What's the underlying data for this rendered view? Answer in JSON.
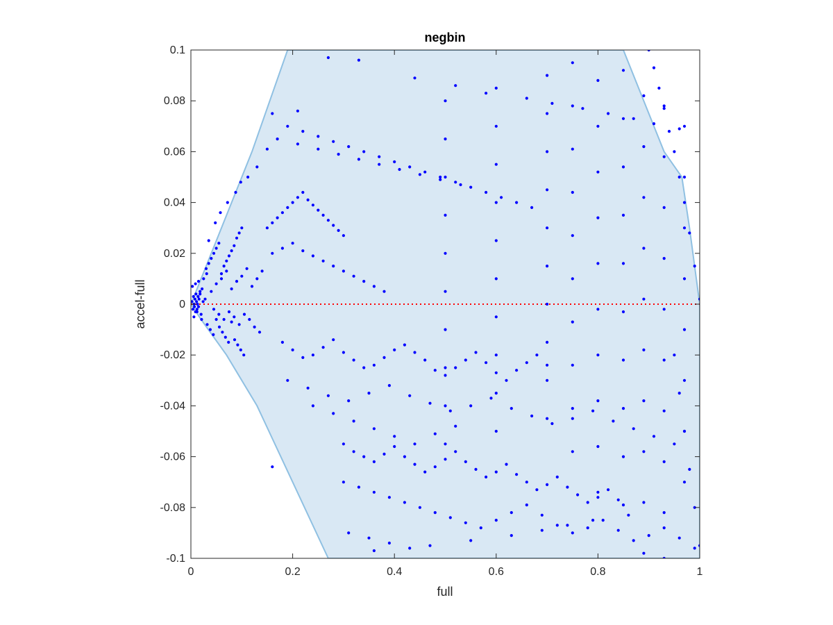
{
  "chart_data": {
    "type": "scatter",
    "title": "negbin",
    "xlabel": "full",
    "ylabel": "accel-full",
    "xlim": [
      0,
      1
    ],
    "ylim": [
      -0.1,
      0.1
    ],
    "xticks": [
      0,
      0.2,
      0.4,
      0.6,
      0.8,
      1
    ],
    "xtick_labels": [
      "0",
      "0.2",
      "0.4",
      "0.6",
      "0.8",
      "1"
    ],
    "yticks": [
      -0.1,
      -0.08,
      -0.06,
      -0.04,
      -0.02,
      0,
      0.02,
      0.04,
      0.06,
      0.08,
      0.1
    ],
    "ytick_labels": [
      "-0.1",
      "-0.08",
      "-0.06",
      "-0.04",
      "-0.02",
      "0",
      "0.02",
      "0.04",
      "0.06",
      "0.08",
      "0.1"
    ],
    "grid": false,
    "reference_line": {
      "y": 0,
      "color": "#ff0000",
      "style": "dotted"
    },
    "region": {
      "fill": "#d9e8f4",
      "stroke": "#8fc0e2",
      "boundary": [
        [
          0,
          0
        ],
        [
          0.02,
          0.01
        ],
        [
          0.06,
          0.03
        ],
        [
          0.12,
          0.06
        ],
        [
          0.19,
          0.1
        ],
        [
          0.85,
          0.1
        ],
        [
          0.88,
          0.085
        ],
        [
          0.93,
          0.06
        ],
        [
          0.965,
          0.05
        ],
        [
          0.98,
          0.03
        ],
        [
          1,
          0
        ],
        [
          1,
          -0.1
        ],
        [
          0.27,
          -0.1
        ],
        [
          0.2,
          -0.07
        ],
        [
          0.13,
          -0.04
        ],
        [
          0.07,
          -0.02
        ],
        [
          0.02,
          -0.006
        ],
        [
          0,
          0
        ]
      ]
    },
    "series": [
      {
        "color": "#0000ff",
        "x": [
          0.002,
          0.004,
          0.005,
          0.006,
          0.007,
          0.008,
          0.009,
          0.01,
          0.011,
          0.012,
          0.013,
          0.014,
          0.015,
          0.016,
          0.018,
          0.02,
          0.022,
          0.024,
          0.003,
          0.006,
          0.009,
          0.012,
          0.015,
          0.018,
          0.021,
          0.025,
          0.028,
          0.031,
          0.03,
          0.035,
          0.04,
          0.045,
          0.05,
          0.055,
          0.06,
          0.065,
          0.07,
          0.075,
          0.08,
          0.085,
          0.09,
          0.095,
          0.1,
          0.032,
          0.038,
          0.044,
          0.05,
          0.056,
          0.062,
          0.068,
          0.074,
          0.08,
          0.086,
          0.092,
          0.098,
          0.104,
          0.04,
          0.05,
          0.06,
          0.07,
          0.08,
          0.09,
          0.1,
          0.11,
          0.12,
          0.13,
          0.14,
          0.045,
          0.055,
          0.065,
          0.075,
          0.085,
          0.095,
          0.105,
          0.115,
          0.125,
          0.135,
          0.035,
          0.048,
          0.058,
          0.072,
          0.088,
          0.098,
          0.112,
          0.15,
          0.16,
          0.17,
          0.18,
          0.19,
          0.2,
          0.21,
          0.22,
          0.23,
          0.24,
          0.25,
          0.26,
          0.27,
          0.28,
          0.29,
          0.3,
          0.16,
          0.18,
          0.2,
          0.22,
          0.24,
          0.26,
          0.28,
          0.3,
          0.32,
          0.34,
          0.36,
          0.38,
          0.16,
          0.19,
          0.22,
          0.25,
          0.28,
          0.31,
          0.34,
          0.37,
          0.4,
          0.43,
          0.46,
          0.49,
          0.52,
          0.55,
          0.58,
          0.61,
          0.64,
          0.67,
          0.17,
          0.21,
          0.25,
          0.29,
          0.33,
          0.37,
          0.41,
          0.45,
          0.49,
          0.53,
          0.18,
          0.2,
          0.22,
          0.24,
          0.26,
          0.28,
          0.3,
          0.32,
          0.34,
          0.36,
          0.38,
          0.4,
          0.42,
          0.44,
          0.46,
          0.48,
          0.5,
          0.52,
          0.54,
          0.56,
          0.58,
          0.6,
          0.62,
          0.64,
          0.66,
          0.68,
          0.7,
          0.19,
          0.23,
          0.27,
          0.31,
          0.35,
          0.39,
          0.43,
          0.47,
          0.51,
          0.55,
          0.59,
          0.63,
          0.67,
          0.71,
          0.75,
          0.79,
          0.83,
          0.87,
          0.91,
          0.95,
          0.24,
          0.28,
          0.32,
          0.36,
          0.4,
          0.44,
          0.48,
          0.52,
          0.3,
          0.32,
          0.34,
          0.36,
          0.38,
          0.4,
          0.42,
          0.44,
          0.46,
          0.48,
          0.5,
          0.52,
          0.54,
          0.56,
          0.58,
          0.6,
          0.62,
          0.64,
          0.66,
          0.68,
          0.7,
          0.72,
          0.74,
          0.76,
          0.78,
          0.8,
          0.82,
          0.84,
          0.3,
          0.33,
          0.36,
          0.39,
          0.42,
          0.45,
          0.48,
          0.51,
          0.54,
          0.57,
          0.6,
          0.63,
          0.66,
          0.69,
          0.72,
          0.75,
          0.78,
          0.81,
          0.84,
          0.87,
          0.9,
          0.93,
          0.96,
          0.99,
          0.31,
          0.35,
          0.39,
          0.43,
          0.5,
          0.5,
          0.5,
          0.5,
          0.5,
          0.5,
          0.5,
          0.5,
          0.5,
          0.5,
          0.6,
          0.6,
          0.6,
          0.6,
          0.6,
          0.6,
          0.6,
          0.6,
          0.6,
          0.6,
          0.7,
          0.7,
          0.7,
          0.7,
          0.7,
          0.7,
          0.7,
          0.7,
          0.7,
          0.7,
          0.75,
          0.75,
          0.75,
          0.75,
          0.75,
          0.75,
          0.75,
          0.75,
          0.75,
          0.75,
          0.8,
          0.8,
          0.8,
          0.8,
          0.8,
          0.8,
          0.8,
          0.8,
          0.8,
          0.8,
          0.85,
          0.85,
          0.85,
          0.85,
          0.85,
          0.85,
          0.85,
          0.85,
          0.85,
          0.85,
          0.89,
          0.89,
          0.89,
          0.89,
          0.89,
          0.89,
          0.89,
          0.89,
          0.89,
          0.89,
          0.93,
          0.93,
          0.93,
          0.93,
          0.93,
          0.93,
          0.93,
          0.93,
          0.93,
          0.93,
          0.97,
          0.97,
          0.97,
          0.97,
          0.97,
          0.97,
          0.97,
          0.97,
          0.9,
          0.91,
          0.92,
          0.93,
          0.94,
          0.95,
          0.96,
          0.97,
          0.98,
          0.99,
          1.0,
          0.95,
          0.96,
          0.97,
          0.98,
          0.99,
          1.0,
          0.16,
          0.21,
          0.13,
          0.15,
          0.27,
          0.33,
          0.44,
          0.52,
          0.58,
          0.66,
          0.71,
          0.77,
          0.82,
          0.87,
          0.91,
          0.96,
          0.36,
          0.47,
          0.55,
          0.63,
          0.69,
          0.74,
          0.79,
          0.86
        ],
        "y": [
          0.001,
          -0.002,
          0.003,
          0.0,
          -0.001,
          0.002,
          -0.003,
          0.004,
          0.001,
          -0.002,
          0.0,
          0.003,
          -0.001,
          0.002,
          0.005,
          -0.004,
          0.006,
          0.001,
          0.007,
          -0.005,
          0.008,
          -0.003,
          0.009,
          0.004,
          -0.006,
          0.01,
          0.002,
          0.012,
          0.014,
          0.016,
          0.018,
          0.02,
          0.022,
          0.024,
          0.012,
          0.015,
          0.017,
          0.019,
          0.021,
          0.023,
          0.026,
          0.028,
          0.03,
          -0.008,
          -0.01,
          -0.012,
          -0.006,
          -0.009,
          -0.011,
          -0.013,
          -0.015,
          -0.007,
          -0.014,
          -0.016,
          -0.018,
          -0.02,
          0.005,
          0.008,
          0.01,
          0.013,
          0.006,
          0.009,
          0.011,
          0.014,
          0.007,
          0.01,
          0.013,
          -0.002,
          -0.004,
          -0.006,
          -0.003,
          -0.005,
          -0.008,
          -0.004,
          -0.006,
          -0.009,
          -0.011,
          0.025,
          0.032,
          0.036,
          0.04,
          0.044,
          0.048,
          0.05,
          0.03,
          0.032,
          0.034,
          0.036,
          0.038,
          0.04,
          0.042,
          0.044,
          0.041,
          0.039,
          0.037,
          0.035,
          0.033,
          0.031,
          0.029,
          0.027,
          0.02,
          0.022,
          0.024,
          0.021,
          0.019,
          0.017,
          0.015,
          0.013,
          0.011,
          0.009,
          0.007,
          0.005,
          0.075,
          0.07,
          0.068,
          0.066,
          0.064,
          0.062,
          0.06,
          0.058,
          0.056,
          0.054,
          0.052,
          0.05,
          0.048,
          0.046,
          0.044,
          0.042,
          0.04,
          0.038,
          0.065,
          0.063,
          0.061,
          0.059,
          0.057,
          0.055,
          0.053,
          0.051,
          0.049,
          0.047,
          -0.015,
          -0.018,
          -0.021,
          -0.02,
          -0.017,
          -0.014,
          -0.019,
          -0.022,
          -0.025,
          -0.024,
          -0.021,
          -0.018,
          -0.016,
          -0.019,
          -0.022,
          -0.026,
          -0.028,
          -0.025,
          -0.022,
          -0.019,
          -0.023,
          -0.027,
          -0.03,
          -0.026,
          -0.023,
          -0.02,
          -0.024,
          -0.03,
          -0.033,
          -0.036,
          -0.038,
          -0.035,
          -0.032,
          -0.036,
          -0.039,
          -0.042,
          -0.04,
          -0.037,
          -0.041,
          -0.044,
          -0.047,
          -0.045,
          -0.042,
          -0.046,
          -0.049,
          -0.052,
          -0.055,
          -0.04,
          -0.043,
          -0.046,
          -0.049,
          -0.052,
          -0.055,
          -0.051,
          -0.048,
          -0.055,
          -0.058,
          -0.06,
          -0.062,
          -0.059,
          -0.056,
          -0.06,
          -0.063,
          -0.066,
          -0.064,
          -0.061,
          -0.058,
          -0.062,
          -0.065,
          -0.068,
          -0.066,
          -0.063,
          -0.067,
          -0.07,
          -0.073,
          -0.071,
          -0.068,
          -0.072,
          -0.075,
          -0.078,
          -0.076,
          -0.073,
          -0.077,
          -0.07,
          -0.072,
          -0.074,
          -0.076,
          -0.078,
          -0.08,
          -0.082,
          -0.084,
          -0.086,
          -0.088,
          -0.085,
          -0.082,
          -0.079,
          -0.083,
          -0.087,
          -0.09,
          -0.088,
          -0.085,
          -0.089,
          -0.093,
          -0.091,
          -0.088,
          -0.092,
          -0.096,
          -0.09,
          -0.092,
          -0.094,
          -0.096,
          0.08,
          0.065,
          0.05,
          0.035,
          0.02,
          0.005,
          -0.01,
          -0.025,
          -0.04,
          -0.055,
          0.085,
          0.07,
          0.055,
          0.04,
          0.025,
          0.01,
          -0.005,
          -0.02,
          -0.035,
          -0.05,
          0.09,
          0.075,
          0.06,
          0.045,
          0.03,
          0.015,
          0.0,
          -0.015,
          -0.03,
          -0.045,
          0.095,
          0.078,
          0.061,
          0.044,
          0.027,
          0.01,
          -0.007,
          -0.024,
          -0.041,
          -0.058,
          0.088,
          0.07,
          0.052,
          0.034,
          0.016,
          -0.002,
          -0.02,
          -0.038,
          -0.056,
          -0.074,
          0.092,
          0.073,
          0.054,
          0.035,
          0.016,
          -0.003,
          -0.022,
          -0.041,
          -0.06,
          -0.079,
          0.082,
          0.062,
          0.042,
          0.022,
          0.002,
          -0.018,
          -0.038,
          -0.058,
          -0.078,
          -0.098,
          0.078,
          0.058,
          0.038,
          0.018,
          -0.002,
          -0.022,
          -0.042,
          -0.062,
          -0.082,
          -0.1,
          0.07,
          0.05,
          0.03,
          0.01,
          -0.01,
          -0.03,
          -0.05,
          -0.07,
          0.1,
          0.093,
          0.085,
          0.077,
          0.068,
          0.06,
          0.05,
          0.04,
          0.028,
          0.015,
          0.002,
          -0.02,
          -0.035,
          -0.05,
          -0.065,
          -0.08,
          -0.095,
          -0.064,
          0.076,
          0.054,
          0.061,
          0.097,
          0.096,
          0.089,
          0.086,
          0.083,
          0.081,
          0.079,
          0.077,
          0.075,
          0.073,
          0.071,
          0.069,
          -0.097,
          -0.095,
          -0.093,
          -0.091,
          -0.089,
          -0.087,
          -0.085,
          -0.083
        ]
      }
    ]
  }
}
